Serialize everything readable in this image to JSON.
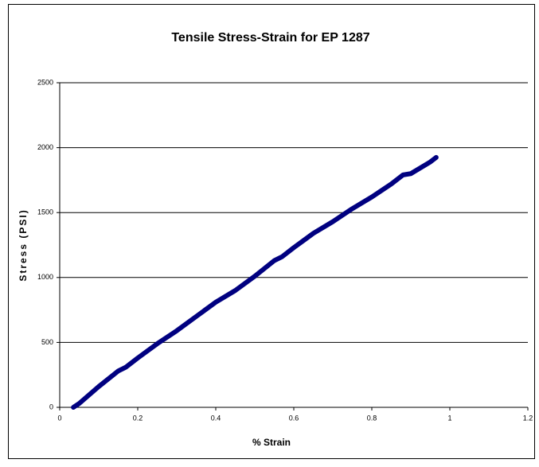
{
  "chart_data": {
    "type": "line",
    "title": "Tensile Stress-Strain for EP 1287",
    "x_label": "% Strain",
    "y_label": "Stress (PSI)",
    "x": [
      0.035,
      0.05,
      0.1,
      0.15,
      0.17,
      0.2,
      0.25,
      0.3,
      0.35,
      0.4,
      0.45,
      0.5,
      0.55,
      0.57,
      0.6,
      0.65,
      0.7,
      0.75,
      0.8,
      0.85,
      0.88,
      0.9,
      0.95,
      0.965
    ],
    "series": [
      {
        "color": "#000080",
        "values": [
          0,
          30,
          160,
          280,
          310,
          380,
          490,
          590,
          700,
          810,
          900,
          1010,
          1130,
          1160,
          1230,
          1340,
          1430,
          1530,
          1620,
          1720,
          1790,
          1800,
          1890,
          1925
        ]
      }
    ],
    "xlim": [
      0,
      1.2
    ],
    "xticks": [
      0,
      0.2,
      0.4,
      0.6,
      0.8,
      1,
      1.2
    ],
    "ylim": [
      0,
      2500
    ],
    "yticks": [
      0,
      500,
      1000,
      1500,
      2000,
      2500
    ],
    "grid": true
  }
}
